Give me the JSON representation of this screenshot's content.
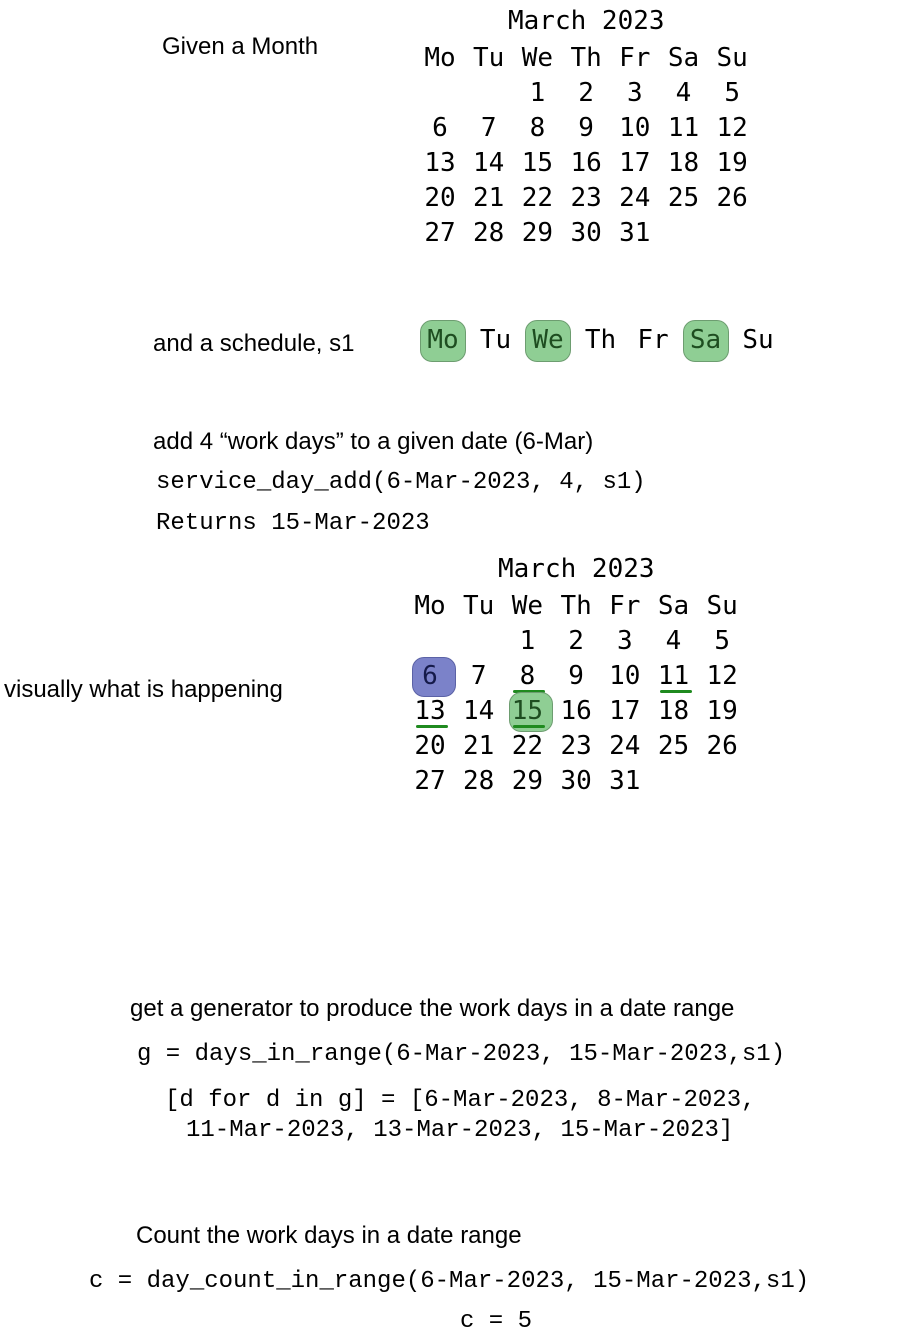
{
  "section1": {
    "label": "Given a Month",
    "calendar": {
      "title": "March 2023",
      "weekdays": [
        "Mo",
        "Tu",
        "We",
        "Th",
        "Fr",
        "Sa",
        "Su"
      ],
      "first_weekday_index": 2,
      "days_in_month": 31
    }
  },
  "section2": {
    "label": "and a schedule, s1",
    "schedule": [
      {
        "day": "Mo",
        "on": true
      },
      {
        "day": "Tu",
        "on": false
      },
      {
        "day": "We",
        "on": true
      },
      {
        "day": "Th",
        "on": false
      },
      {
        "day": "Fr",
        "on": false
      },
      {
        "day": "Sa",
        "on": true
      },
      {
        "day": "Su",
        "on": false
      }
    ]
  },
  "section3": {
    "label": "add 4 “work days” to a given date (6-Mar)",
    "code": "service_day_add(6-Mar-2023, 4, s1)",
    "result": "Returns 15-Mar-2023",
    "visual_label": "visually what is happening",
    "calendar": {
      "title": "March 2023",
      "weekdays": [
        "Mo",
        "Tu",
        "We",
        "Th",
        "Fr",
        "Sa",
        "Su"
      ],
      "first_weekday_index": 2,
      "days_in_month": 31,
      "start_day": 6,
      "counted_days": [
        8,
        11,
        13,
        15
      ],
      "result_day": 15
    },
    "colors": {
      "start": "#7b82c9",
      "result": "#8fce94",
      "underline": "#1f8a1f"
    }
  },
  "section4": {
    "label": "get a generator to produce the work days in a date range",
    "code": "g = days_in_range(6-Mar-2023, 15-Mar-2023,s1)",
    "list_line1": "[d for d in g] = [6-Mar-2023, 8-Mar-2023,",
    "list_line2": "11-Mar-2023, 13-Mar-2023, 15-Mar-2023]"
  },
  "section5": {
    "label": "Count the work days in a date range",
    "code": "c = day_count_in_range(6-Mar-2023, 15-Mar-2023,s1)",
    "result": "c = 5"
  }
}
